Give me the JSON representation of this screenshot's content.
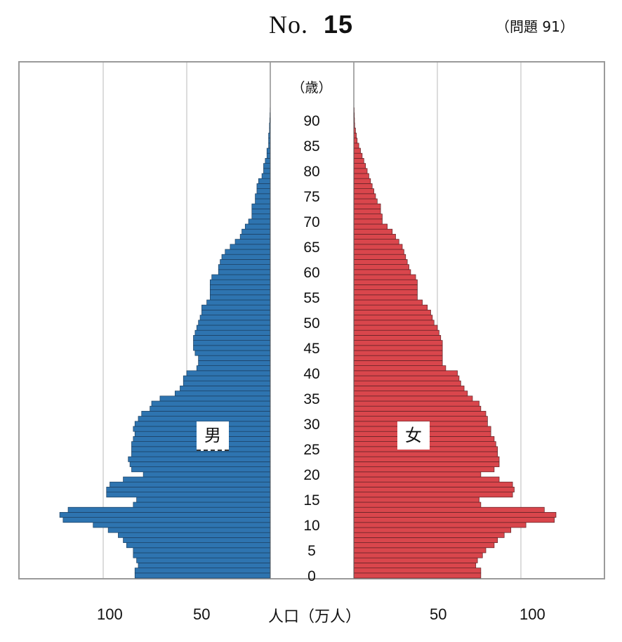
{
  "header": {
    "no_label": "No.",
    "number": "15",
    "question_ref": "（問題 91）"
  },
  "chart_data": {
    "type": "bar",
    "orientation": "horizontal-pyramid",
    "y_axis_unit": "（歳）",
    "age_ticks": [
      "90",
      "85",
      "80",
      "75",
      "70",
      "65",
      "60",
      "55",
      "50",
      "45",
      "40",
      "35",
      "30",
      "25",
      "20",
      "15",
      "10",
      "5",
      "0"
    ],
    "x_axis_label": "人口（万人）",
    "x_tick_labels": {
      "male": [
        "100",
        "50"
      ],
      "female": [
        "50",
        "100"
      ]
    },
    "xlim": [
      0,
      140
    ],
    "colors": {
      "male": "#2e74b0",
      "female": "#d9464c"
    },
    "series": [
      {
        "name": "男",
        "ages": [
          0,
          1,
          2,
          3,
          4,
          5,
          6,
          7,
          8,
          9,
          10,
          11,
          12,
          13,
          14,
          15,
          16,
          17,
          18,
          19,
          20,
          21,
          22,
          23,
          24,
          25,
          26,
          27,
          28,
          29,
          30,
          31,
          32,
          33,
          34,
          35,
          36,
          37,
          38,
          39,
          40,
          41,
          42,
          43,
          44,
          45,
          46,
          47,
          48,
          49,
          50,
          51,
          52,
          53,
          54,
          55,
          56,
          57,
          58,
          59,
          60,
          61,
          62,
          63,
          64,
          65,
          66,
          67,
          68,
          69,
          70,
          71,
          72,
          73,
          74,
          75,
          76,
          77,
          78,
          79,
          80,
          81,
          82,
          83,
          84,
          85,
          86,
          87,
          88,
          89,
          90,
          91,
          92,
          93,
          94,
          95
        ],
        "values": [
          81,
          81,
          79,
          80,
          82,
          82,
          86,
          88,
          91,
          97,
          106,
          124,
          126,
          121,
          82,
          80,
          98,
          98,
          96,
          88,
          76,
          83,
          84,
          85,
          83,
          83,
          83,
          82,
          81,
          82,
          81,
          79,
          77,
          72,
          71,
          66,
          57,
          54,
          52,
          52,
          50,
          44,
          43,
          43,
          45,
          46,
          46,
          46,
          45,
          44,
          43,
          42,
          41,
          41,
          38,
          36,
          36,
          36,
          36,
          35,
          31,
          31,
          30,
          29,
          27,
          24,
          21,
          18,
          17,
          15,
          13,
          11,
          11,
          11,
          9,
          9,
          8,
          8,
          7,
          5,
          4,
          4,
          3,
          2,
          2,
          1,
          1,
          1,
          0.5,
          0.5,
          0.3,
          0.2,
          0.1,
          0,
          0,
          0
        ]
      },
      {
        "name": "女",
        "ages": [
          0,
          1,
          2,
          3,
          4,
          5,
          6,
          7,
          8,
          9,
          10,
          11,
          12,
          13,
          14,
          15,
          16,
          17,
          18,
          19,
          20,
          21,
          22,
          23,
          24,
          25,
          26,
          27,
          28,
          29,
          30,
          31,
          32,
          33,
          34,
          35,
          36,
          37,
          38,
          39,
          40,
          41,
          42,
          43,
          44,
          45,
          46,
          47,
          48,
          49,
          50,
          51,
          52,
          53,
          54,
          55,
          56,
          57,
          58,
          59,
          60,
          61,
          62,
          63,
          64,
          65,
          66,
          67,
          68,
          69,
          70,
          71,
          72,
          73,
          74,
          75,
          76,
          77,
          78,
          79,
          80,
          81,
          82,
          83,
          84,
          85,
          86,
          87,
          88,
          89,
          90,
          91,
          92,
          93,
          94,
          95
        ],
        "values": [
          76,
          76,
          73,
          74,
          77,
          79,
          84,
          86,
          90,
          94,
          103,
          120,
          121,
          114,
          76,
          75,
          95,
          96,
          95,
          87,
          76,
          84,
          87,
          87,
          86,
          86,
          85,
          84,
          82,
          82,
          80,
          80,
          79,
          76,
          75,
          71,
          68,
          66,
          64,
          63,
          62,
          55,
          53,
          53,
          53,
          53,
          53,
          52,
          51,
          50,
          48,
          47,
          46,
          44,
          41,
          38,
          38,
          38,
          38,
          37,
          34,
          33,
          32,
          31,
          30,
          29,
          27,
          25,
          23,
          20,
          17,
          17,
          16,
          16,
          14,
          13,
          12,
          11,
          10,
          9,
          8,
          7,
          6,
          5,
          4,
          3,
          2,
          1.5,
          1,
          0.5,
          0.4,
          0.3,
          0.2,
          0,
          0,
          0
        ]
      }
    ]
  }
}
